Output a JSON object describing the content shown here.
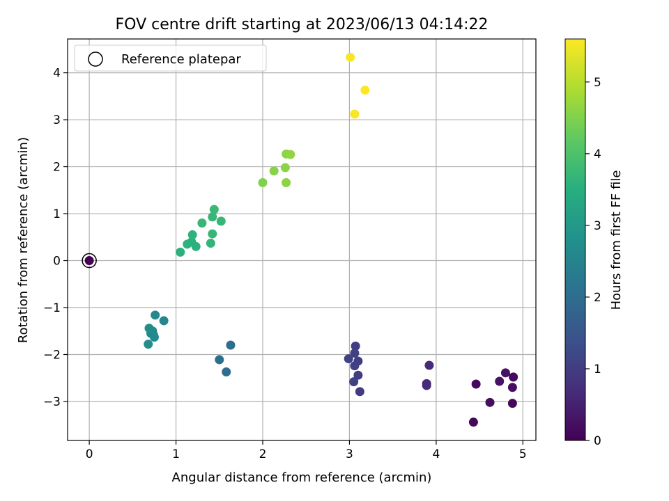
{
  "chart_data": {
    "type": "scatter",
    "title": "FOV centre drift starting at 2023/06/13 04:14:22",
    "xlabel": "Angular distance from reference (arcmin)",
    "ylabel": "Rotation from reference (arcmin)",
    "xlim": [
      -0.25,
      5.15
    ],
    "ylim": [
      -3.83,
      4.72
    ],
    "xticks": [
      0,
      1,
      2,
      3,
      4,
      5
    ],
    "xtick_labels": [
      "0",
      "1",
      "2",
      "3",
      "4",
      "5"
    ],
    "yticks": [
      -3,
      -2,
      -1,
      0,
      1,
      2,
      3,
      4
    ],
    "ytick_labels": [
      "−3",
      "−2",
      "−1",
      "0",
      "1",
      "2",
      "3",
      "4"
    ],
    "grid": true,
    "colormap": "viridis",
    "colorbar": {
      "label": "Hours from first FF file",
      "range": [
        0,
        5.6
      ],
      "ticks": [
        0,
        1,
        2,
        3,
        4,
        5
      ],
      "tick_labels": [
        "0",
        "1",
        "2",
        "3",
        "4",
        "5"
      ]
    },
    "legend": {
      "position": "top-left",
      "label": "Reference platepar"
    },
    "reference_point": {
      "x": 0,
      "y": 0,
      "c": 0
    },
    "points": [
      {
        "x": 0.0,
        "y": 0.0,
        "c": 0.0
      },
      {
        "x": 4.43,
        "y": -3.44,
        "c": 0.1
      },
      {
        "x": 4.46,
        "y": -2.63,
        "c": 0.15
      },
      {
        "x": 4.62,
        "y": -3.02,
        "c": 0.2
      },
      {
        "x": 4.73,
        "y": -2.57,
        "c": 0.3
      },
      {
        "x": 4.8,
        "y": -2.39,
        "c": 0.25
      },
      {
        "x": 4.88,
        "y": -2.7,
        "c": 0.2
      },
      {
        "x": 4.89,
        "y": -2.48,
        "c": 0.15
      },
      {
        "x": 4.88,
        "y": -3.04,
        "c": 0.1
      },
      {
        "x": 3.92,
        "y": -2.23,
        "c": 0.65
      },
      {
        "x": 3.89,
        "y": -2.62,
        "c": 0.6
      },
      {
        "x": 3.89,
        "y": -2.66,
        "c": 0.65
      },
      {
        "x": 3.07,
        "y": -1.82,
        "c": 1.0
      },
      {
        "x": 3.06,
        "y": -1.97,
        "c": 1.05
      },
      {
        "x": 2.99,
        "y": -2.09,
        "c": 1.1
      },
      {
        "x": 3.1,
        "y": -2.14,
        "c": 1.0
      },
      {
        "x": 3.06,
        "y": -2.24,
        "c": 1.05
      },
      {
        "x": 3.1,
        "y": -2.44,
        "c": 1.0
      },
      {
        "x": 3.05,
        "y": -2.58,
        "c": 1.1
      },
      {
        "x": 3.12,
        "y": -2.79,
        "c": 0.95
      },
      {
        "x": 1.63,
        "y": -1.8,
        "c": 2.0
      },
      {
        "x": 1.5,
        "y": -2.11,
        "c": 2.05
      },
      {
        "x": 1.58,
        "y": -2.37,
        "c": 2.0
      },
      {
        "x": 0.76,
        "y": -1.16,
        "c": 2.6
      },
      {
        "x": 0.86,
        "y": -1.28,
        "c": 2.55
      },
      {
        "x": 0.69,
        "y": -1.44,
        "c": 2.7
      },
      {
        "x": 0.73,
        "y": -1.5,
        "c": 2.65
      },
      {
        "x": 0.71,
        "y": -1.55,
        "c": 2.7
      },
      {
        "x": 0.74,
        "y": -1.58,
        "c": 2.65
      },
      {
        "x": 0.75,
        "y": -1.63,
        "c": 2.6
      },
      {
        "x": 0.68,
        "y": -1.78,
        "c": 2.7
      },
      {
        "x": 1.05,
        "y": 0.18,
        "c": 3.55
      },
      {
        "x": 1.13,
        "y": 0.35,
        "c": 3.6
      },
      {
        "x": 1.18,
        "y": 0.4,
        "c": 3.55
      },
      {
        "x": 1.19,
        "y": 0.55,
        "c": 3.6
      },
      {
        "x": 1.23,
        "y": 0.3,
        "c": 3.55
      },
      {
        "x": 1.3,
        "y": 0.8,
        "c": 3.7
      },
      {
        "x": 1.4,
        "y": 0.37,
        "c": 3.65
      },
      {
        "x": 1.42,
        "y": 0.57,
        "c": 3.7
      },
      {
        "x": 1.42,
        "y": 0.93,
        "c": 3.7
      },
      {
        "x": 1.44,
        "y": 1.09,
        "c": 3.75
      },
      {
        "x": 1.52,
        "y": 0.84,
        "c": 3.7
      },
      {
        "x": 2.0,
        "y": 1.66,
        "c": 4.5
      },
      {
        "x": 2.13,
        "y": 1.91,
        "c": 4.55
      },
      {
        "x": 2.26,
        "y": 1.98,
        "c": 4.6
      },
      {
        "x": 2.27,
        "y": 2.27,
        "c": 4.6
      },
      {
        "x": 2.32,
        "y": 2.26,
        "c": 4.65
      },
      {
        "x": 2.27,
        "y": 1.66,
        "c": 4.6
      },
      {
        "x": 3.01,
        "y": 4.33,
        "c": 5.55
      },
      {
        "x": 3.18,
        "y": 3.63,
        "c": 5.6
      },
      {
        "x": 3.06,
        "y": 3.12,
        "c": 5.55
      }
    ]
  }
}
